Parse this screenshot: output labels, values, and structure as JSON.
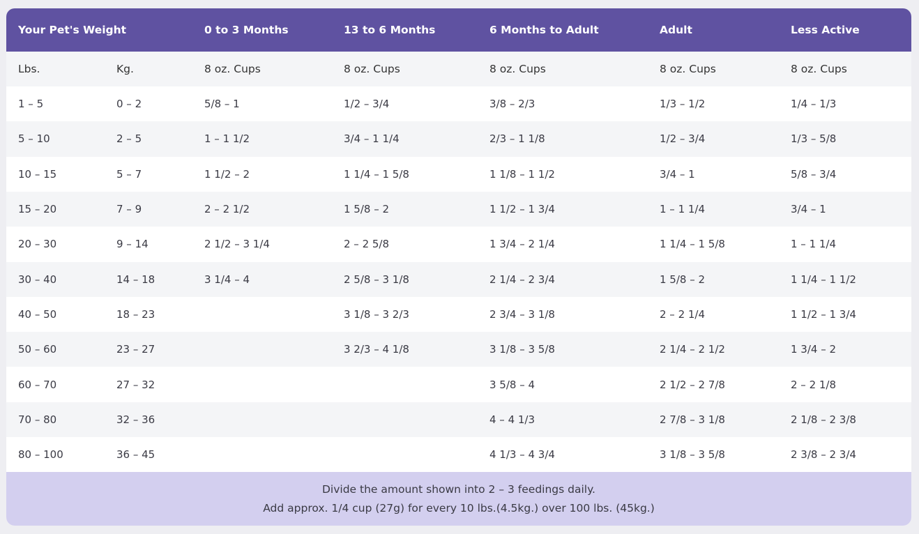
{
  "table": {
    "header": [
      "Your Pet's Weight",
      "0 to 3 Months",
      "13 to 6 Months",
      "6 Months to Adult",
      "Adult",
      "Less Active"
    ],
    "subheader": [
      "Lbs.",
      "Kg.",
      "8 oz. Cups",
      "8 oz. Cups",
      "8 oz. Cups",
      "8 oz. Cups",
      "8 oz. Cups"
    ],
    "rows": [
      [
        "1 – 5",
        "0 – 2",
        "5/8 – 1",
        "1/2 – 3/4",
        "3/8 – 2/3",
        "1/3 – 1/2",
        "1/4 – 1/3"
      ],
      [
        "5 – 10",
        "2 – 5",
        "1 – 1 1/2",
        "3/4 – 1 1/4",
        "2/3 – 1 1/8",
        "1/2 – 3/4",
        "1/3 – 5/8"
      ],
      [
        "10 – 15",
        "5 – 7",
        "1 1/2 – 2",
        "1 1/4 – 1 5/8",
        "1 1/8 – 1 1/2",
        "3/4 – 1",
        "5/8 – 3/4"
      ],
      [
        "15 – 20",
        "7 – 9",
        "2 – 2 1/2",
        "1 5/8 – 2",
        "1 1/2 – 1 3/4",
        "1 – 1 1/4",
        "3/4 – 1"
      ],
      [
        "20 – 30",
        "9 – 14",
        "2 1/2 – 3 1/4",
        "2 – 2 5/8",
        "1 3/4 – 2 1/4",
        "1 1/4 – 1 5/8",
        "1 – 1 1/4"
      ],
      [
        "30 – 40",
        "14 – 18",
        "3 1/4 – 4",
        "2 5/8 – 3 1/8",
        "2 1/4 – 2 3/4",
        "1 5/8 – 2",
        "1 1/4 – 1 1/2"
      ],
      [
        "40 – 50",
        "18 – 23",
        null,
        "3 1/8 – 3 2/3",
        "2 3/4 – 3 1/8",
        "2 – 2 1/4",
        "1 1/2 – 1 3/4"
      ],
      [
        "50 – 60",
        "23 – 27",
        null,
        "3 2/3 – 4 1/8",
        "3 1/8 – 3 5/8",
        "2 1/4 – 2 1/2",
        "1 3/4 – 2"
      ],
      [
        "60 – 70",
        "27 – 32",
        null,
        null,
        "3 5/8 – 4",
        "2 1/2 – 2 7/8",
        "2 – 2 1/8"
      ],
      [
        "70 – 80",
        "32 – 36",
        null,
        null,
        "4 – 4 1/3",
        "2 7/8 – 3 1/8",
        "2 1/8 – 2 3/8"
      ],
      [
        "80 – 100",
        "36 – 45",
        null,
        null,
        "4 1/3 – 4 3/4",
        "3 1/8 – 3 5/8",
        "2 3/8 – 2 3/4"
      ]
    ],
    "footer": [
      "Divide the amount shown into 2 – 3 feedings daily.",
      "Add approx. 1/4 cup (27g) for every 10 lbs.(4.5kg.) over 100 lbs. (45kg.)"
    ]
  }
}
